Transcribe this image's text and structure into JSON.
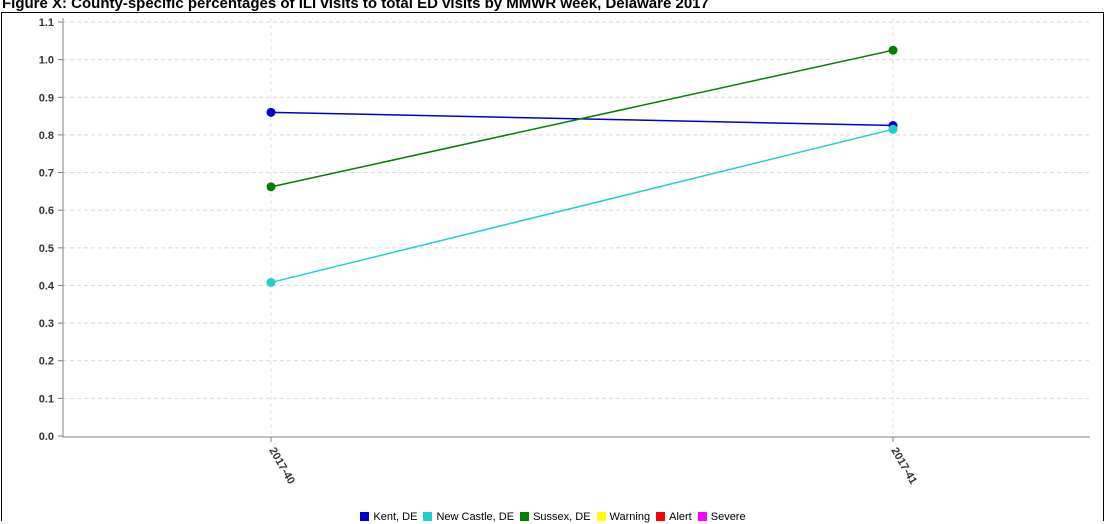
{
  "page": {
    "title": "Figure X: County-specific percentages of ILI visits to total ED visits by MMWR week, Delaware 2017"
  },
  "chart_data": {
    "type": "line",
    "title": "",
    "xlabel": "",
    "ylabel": "",
    "categories": [
      "2017-40",
      "2017-41"
    ],
    "ylim": [
      0,
      1.1
    ],
    "yticks": [
      0.0,
      0.1,
      0.2,
      0.3,
      0.4,
      0.5,
      0.6,
      0.7,
      0.8,
      0.9,
      1.0,
      1.1
    ],
    "ytick_labels": [
      "0.0",
      "0.1",
      "0.2",
      "0.3",
      "0.4",
      "0.5",
      "0.6",
      "0.7",
      "0.8",
      "0.9",
      "1.0",
      "1.1"
    ],
    "grid": true,
    "legend_position": "bottom",
    "series": [
      {
        "name": "Kent, DE",
        "color": "#0000cc",
        "values": [
          0.86,
          0.825
        ]
      },
      {
        "name": "New Castle, DE",
        "color": "#1fcfcf",
        "values": [
          0.408,
          0.815
        ]
      },
      {
        "name": "Sussex, DE",
        "color": "#008000",
        "values": [
          0.662,
          1.025
        ]
      }
    ],
    "legend": [
      {
        "name": "Kent, DE",
        "color": "#0000cc"
      },
      {
        "name": "New Castle, DE",
        "color": "#1fcfcf"
      },
      {
        "name": "Sussex, DE",
        "color": "#008000"
      },
      {
        "name": "Warning",
        "color": "#ffff00"
      },
      {
        "name": "Alert",
        "color": "#ff0000"
      },
      {
        "name": "Severe",
        "color": "#ff00ff"
      }
    ]
  }
}
